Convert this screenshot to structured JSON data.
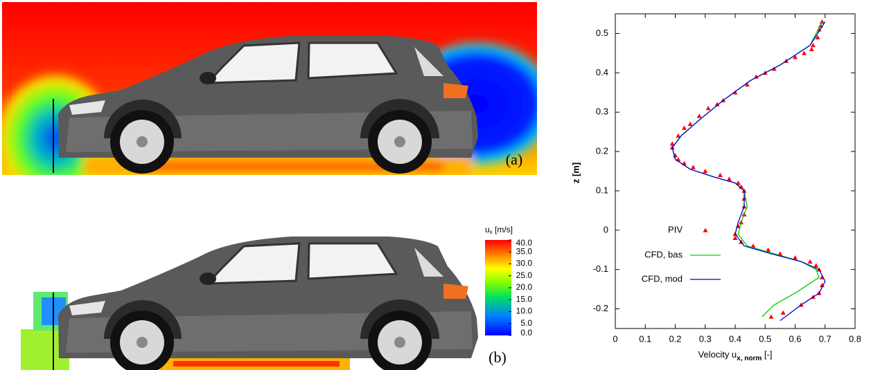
{
  "panels": {
    "a_label": "(a)",
    "b_label": "(b)"
  },
  "colorbar": {
    "label": "u",
    "label_sub": "x",
    "label_unit": " [m/s]",
    "lim": [
      0,
      40
    ],
    "ticks": [
      {
        "value": 40,
        "label": "40.0"
      },
      {
        "value": 35,
        "label": "35.0"
      },
      {
        "value": 30,
        "label": "30.0"
      },
      {
        "value": 25,
        "label": "25.0"
      },
      {
        "value": 20,
        "label": "20.0"
      },
      {
        "value": 15,
        "label": "15.0"
      },
      {
        "value": 10,
        "label": "10.0"
      },
      {
        "value": 5,
        "label": "5.0"
      },
      {
        "value": 0,
        "label": "0.0"
      }
    ]
  },
  "chart_data": {
    "type": "line",
    "xlabel": "Velocity u",
    "xlabel_sub": "x, norm",
    "xlabel_unit": " [-]",
    "ylabel": "z [m]",
    "xlim": [
      0,
      0.8
    ],
    "ylim": [
      -0.25,
      0.55
    ],
    "xticks": [
      0,
      0.1,
      0.2,
      0.3,
      0.4,
      0.5,
      0.6,
      0.7,
      0.8
    ],
    "yticks": [
      -0.2,
      -0.1,
      0,
      0.1,
      0.2,
      0.3,
      0.4,
      0.5
    ],
    "series": [
      {
        "name": "PIV",
        "color": "#ff0000",
        "style": "markers",
        "x": [
          0.69,
          0.685,
          0.68,
          0.675,
          0.66,
          0.655,
          0.63,
          0.6,
          0.57,
          0.53,
          0.5,
          0.47,
          0.44,
          0.4,
          0.36,
          0.34,
          0.31,
          0.28,
          0.25,
          0.23,
          0.21,
          0.19,
          0.19,
          0.2,
          0.21,
          0.23,
          0.26,
          0.3,
          0.35,
          0.38,
          0.41,
          0.42,
          0.43,
          0.43,
          0.43,
          0.43,
          0.42,
          0.41,
          0.4,
          0.4,
          0.42,
          0.46,
          0.51,
          0.55,
          0.6,
          0.65,
          0.67,
          0.68,
          0.69,
          0.69,
          0.68,
          0.66,
          0.62,
          0.56,
          0.52
        ],
        "values": [
          0.53,
          0.52,
          0.51,
          0.49,
          0.47,
          0.46,
          0.45,
          0.44,
          0.43,
          0.41,
          0.4,
          0.39,
          0.37,
          0.35,
          0.33,
          0.32,
          0.31,
          0.29,
          0.27,
          0.26,
          0.24,
          0.22,
          0.21,
          0.19,
          0.18,
          0.17,
          0.16,
          0.15,
          0.14,
          0.13,
          0.12,
          0.11,
          0.1,
          0.08,
          0.06,
          0.04,
          0.02,
          0.01,
          -0.01,
          -0.02,
          -0.03,
          -0.04,
          -0.05,
          -0.06,
          -0.07,
          -0.08,
          -0.09,
          -0.1,
          -0.12,
          -0.14,
          -0.16,
          -0.17,
          -0.19,
          -0.21,
          -0.22
        ]
      },
      {
        "name": "CFD, bas",
        "color": "#00cc00",
        "style": "line",
        "x": [
          0.69,
          0.65,
          0.55,
          0.45,
          0.36,
          0.28,
          0.22,
          0.19,
          0.2,
          0.25,
          0.33,
          0.4,
          0.43,
          0.44,
          0.42,
          0.41,
          0.44,
          0.53,
          0.62,
          0.67,
          0.68,
          0.6,
          0.53,
          0.49
        ],
        "values": [
          0.53,
          0.47,
          0.42,
          0.38,
          0.33,
          0.28,
          0.24,
          0.21,
          0.18,
          0.155,
          0.135,
          0.12,
          0.1,
          0.06,
          0.02,
          -0.01,
          -0.04,
          -0.06,
          -0.08,
          -0.1,
          -0.12,
          -0.16,
          -0.19,
          -0.22
        ]
      },
      {
        "name": "CFD, mod",
        "color": "#0000cc",
        "style": "line",
        "x": [
          0.7,
          0.65,
          0.55,
          0.45,
          0.36,
          0.28,
          0.22,
          0.19,
          0.2,
          0.25,
          0.33,
          0.4,
          0.43,
          0.43,
          0.41,
          0.4,
          0.43,
          0.52,
          0.62,
          0.68,
          0.7,
          0.68,
          0.62,
          0.55
        ],
        "values": [
          0.53,
          0.47,
          0.42,
          0.38,
          0.33,
          0.28,
          0.24,
          0.21,
          0.18,
          0.155,
          0.135,
          0.12,
          0.1,
          0.06,
          0.02,
          -0.01,
          -0.04,
          -0.06,
          -0.08,
          -0.1,
          -0.13,
          -0.16,
          -0.19,
          -0.23
        ]
      }
    ]
  }
}
